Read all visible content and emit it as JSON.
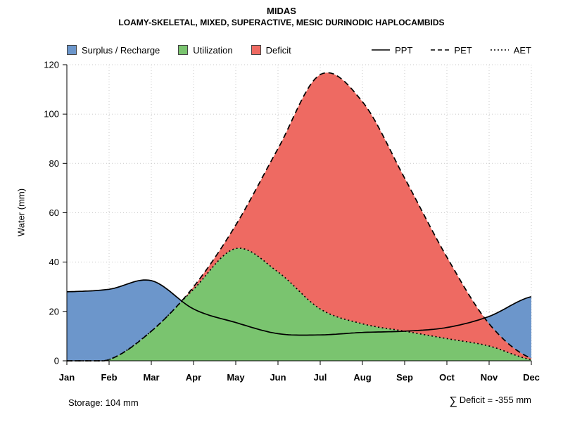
{
  "title": "MIDAS",
  "subtitle": "LOAMY-SKELETAL, MIXED, SUPERACTIVE, MESIC DURINODIC HAPLOCAMBIDS",
  "legend": {
    "areas": [
      {
        "label": "Surplus / Recharge",
        "color": "#6c96cb"
      },
      {
        "label": "Utilization",
        "color": "#7ac46f"
      },
      {
        "label": "Deficit",
        "color": "#ee6a62"
      }
    ],
    "lines": [
      {
        "label": "PPT",
        "style": "solid"
      },
      {
        "label": "PET",
        "style": "dashed"
      },
      {
        "label": "AET",
        "style": "dotted"
      }
    ]
  },
  "footer": {
    "storage": "Storage: 104 mm",
    "sigma": "∑",
    "deficit": "Deficit = -355 mm"
  },
  "chart_data": {
    "type": "area",
    "title": "MIDAS",
    "subtitle": "LOAMY-SKELETAL, MIXED, SUPERACTIVE, MESIC DURINODIC HAPLOCAMBIDS",
    "xlabel": "",
    "ylabel": "Water (mm)",
    "ylim": [
      0,
      120
    ],
    "yticks": [
      0,
      20,
      40,
      60,
      80,
      100,
      120
    ],
    "grid": true,
    "legend_position": "top",
    "categories": [
      "Jan",
      "Feb",
      "Mar",
      "Apr",
      "May",
      "Jun",
      "Jul",
      "Aug",
      "Sep",
      "Oct",
      "Nov",
      "Dec"
    ],
    "series": [
      {
        "name": "PPT",
        "style": "solid",
        "values": [
          28,
          29,
          32.5,
          21,
          15.5,
          11,
          10.5,
          11.5,
          12,
          13.5,
          18,
          26
        ]
      },
      {
        "name": "PET",
        "style": "dashed",
        "values": [
          0,
          0.5,
          12,
          30,
          55,
          86,
          116,
          105,
          74,
          42,
          15,
          1
        ]
      },
      {
        "name": "AET",
        "style": "dotted",
        "values": [
          0,
          0.5,
          12,
          29,
          45.5,
          36,
          21,
          15,
          12,
          9,
          6,
          0.5
        ]
      }
    ],
    "area_fills": [
      {
        "name": "utilization",
        "between": [
          "baseline",
          "AET"
        ],
        "color": "#7ac46f"
      },
      {
        "name": "deficit",
        "between": [
          "AET",
          "PET"
        ],
        "color": "#ee6a62"
      },
      {
        "name": "surplus_recharge",
        "between": [
          "max(PET,AET)",
          "PPT"
        ],
        "color": "#6c96cb"
      }
    ],
    "storage_mm": 104,
    "deficit_sum_mm": -355
  }
}
